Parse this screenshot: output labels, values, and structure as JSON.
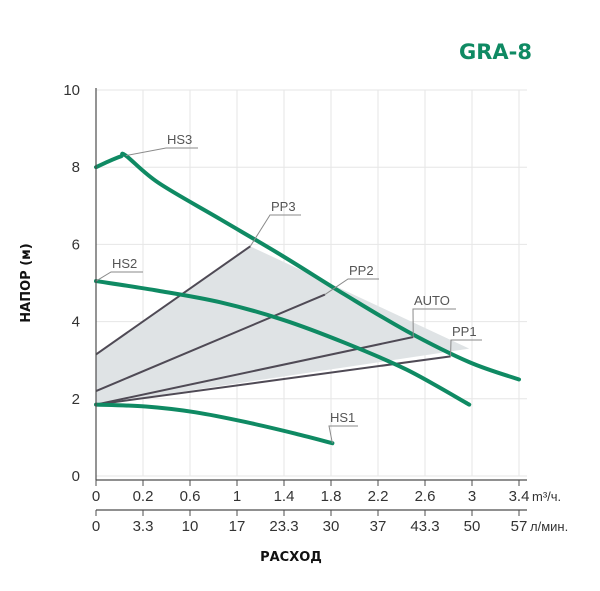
{
  "title": "GRA-8",
  "colors": {
    "hs_curve": "#0f8a63",
    "pp_line": "#4f4a55",
    "operating_area": "#dfe3e5",
    "grid": "#e6e6e6",
    "axis": "#4d4d4d"
  },
  "chart_data": {
    "type": "line",
    "title": "GRA-8",
    "ylabel": "НАПОР (м)",
    "xlabel": "РАСХОД",
    "ylim": [
      0,
      10
    ],
    "yticks": [
      "0",
      "2",
      "4",
      "6",
      "8",
      "10"
    ],
    "xlim_m3h": [
      0,
      3.4
    ],
    "xticks_m3h": [
      "0",
      "0.2",
      "0.6",
      "1",
      "1.4",
      "1.8",
      "2.2",
      "2.6",
      "3",
      "3.4"
    ],
    "x_unit_m3h": "m³/ч.",
    "xticks_lmin": [
      "0",
      "3.3",
      "10",
      "17",
      "23.3",
      "30",
      "37",
      "43.3",
      "50",
      "57"
    ],
    "x_unit_lmin": "л/мин.",
    "grid": true,
    "shaded_region": [
      [
        0,
        3.15
      ],
      [
        1.24,
        5.95
      ],
      [
        3.0,
        3.3
      ],
      [
        0,
        1.85
      ]
    ],
    "series": [
      {
        "name": "HS3",
        "x": [
          0,
          0.1,
          0.2,
          0.24,
          0.5,
          1.0,
          1.5,
          2.0,
          2.5,
          3.0,
          3.4
        ],
        "y": [
          8.0,
          8.15,
          8.28,
          8.3,
          7.6,
          6.65,
          5.7,
          4.7,
          3.75,
          2.95,
          2.5
        ]
      },
      {
        "name": "HS2",
        "x": [
          0,
          0.5,
          1.0,
          1.5,
          2.0,
          2.5,
          3.0
        ],
        "y": [
          5.05,
          4.8,
          4.5,
          4.05,
          3.45,
          2.75,
          1.85
        ]
      },
      {
        "name": "HS1",
        "x": [
          0,
          0.4,
          0.8,
          1.2,
          1.6,
          1.9
        ],
        "y": [
          1.85,
          1.8,
          1.65,
          1.4,
          1.1,
          0.85
        ]
      },
      {
        "name": "PP3",
        "x": [
          0,
          1.24
        ],
        "y": [
          3.15,
          5.95
        ]
      },
      {
        "name": "PP2",
        "x": [
          0,
          1.84
        ],
        "y": [
          2.2,
          4.7
        ]
      },
      {
        "name": "AUTO",
        "x": [
          0,
          2.55
        ],
        "y": [
          1.85,
          3.6
        ]
      },
      {
        "name": "PP1",
        "x": [
          0,
          2.85
        ],
        "y": [
          1.85,
          3.1
        ]
      }
    ]
  }
}
